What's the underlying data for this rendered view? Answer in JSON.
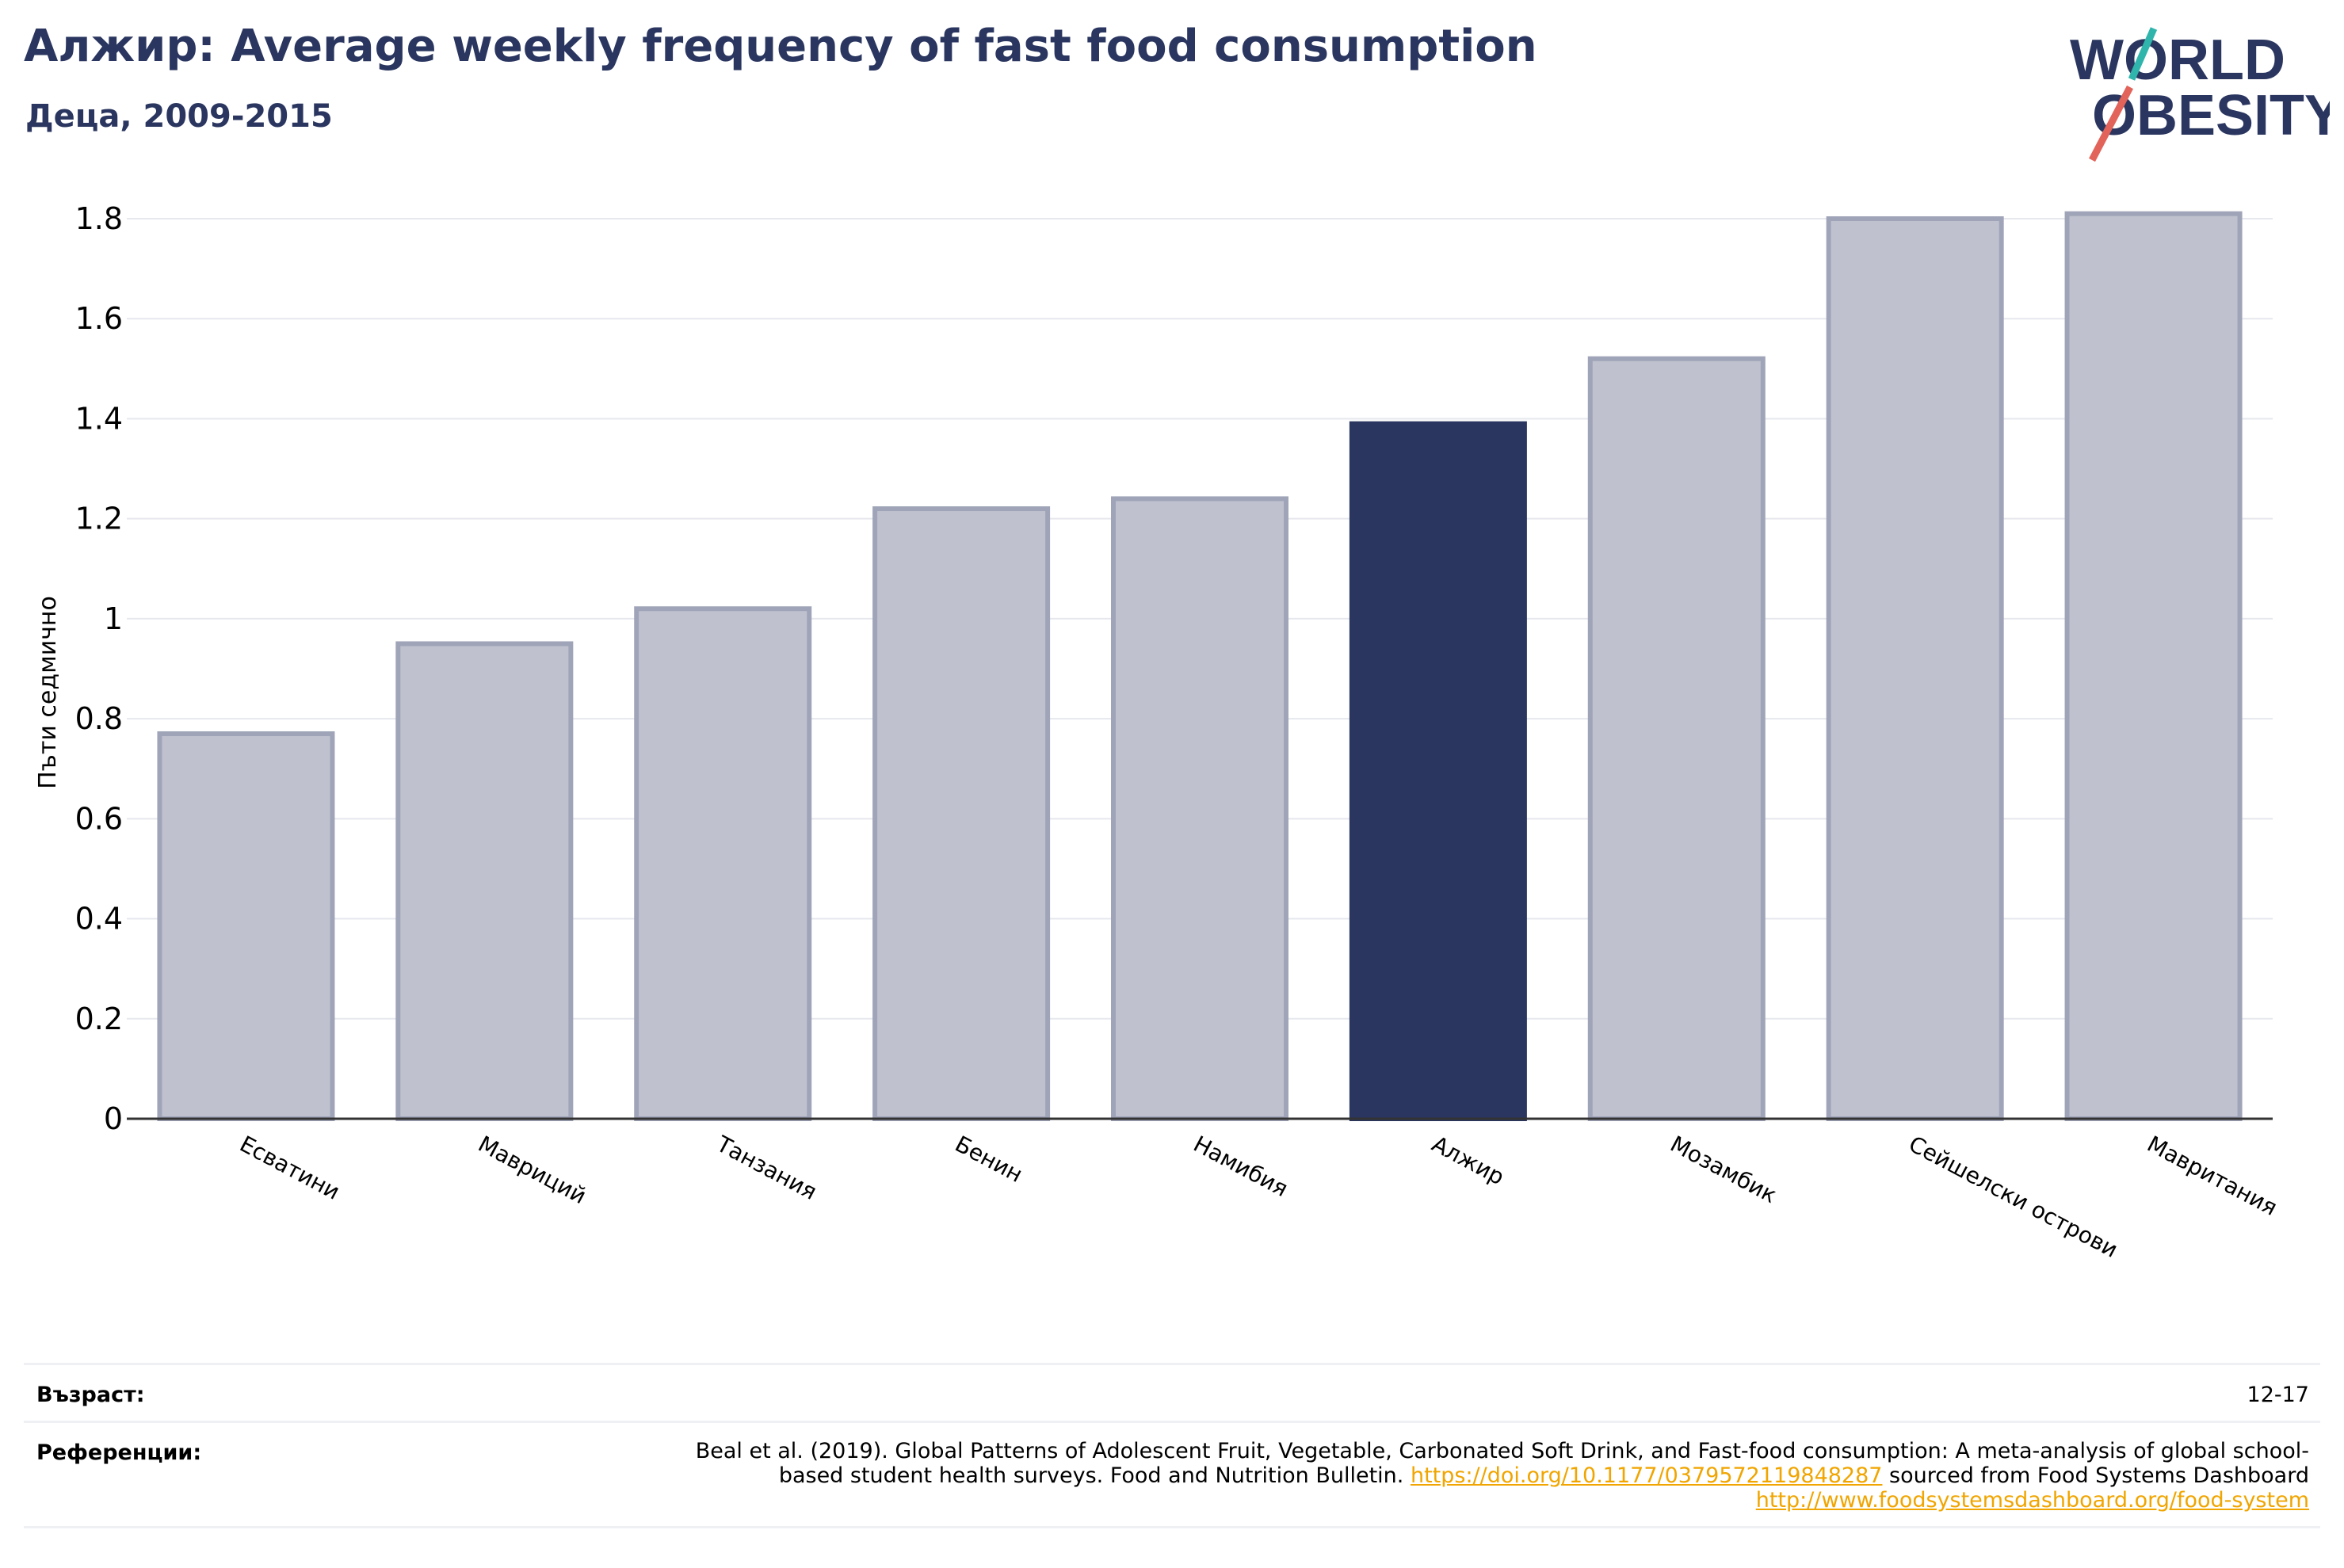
{
  "header": {
    "title": "Алжир: Average weekly frequency of fast food consumption",
    "subtitle": "Деца, 2009-2015"
  },
  "logo": {
    "line1": "WORLD",
    "line2": "OBESITY"
  },
  "chart_data": {
    "type": "bar",
    "title": "Алжир: Average weekly frequency of fast food consumption",
    "subtitle": "Деца, 2009-2015",
    "ylabel": "Пъти седмично",
    "xlabel": "",
    "ylim": [
      0,
      1.8
    ],
    "yticks": [
      0,
      0.2,
      0.4,
      0.6,
      0.8,
      1,
      1.2,
      1.4,
      1.6,
      1.8
    ],
    "ytick_labels": [
      "0",
      "0.2",
      "0.4",
      "0.6",
      "0.8",
      "1",
      "1.2",
      "1.4",
      "1.6",
      "1.8"
    ],
    "categories": [
      "Есватини",
      "Мавриций",
      "Танзания",
      "Бенин",
      "Намибия",
      "Алжир",
      "Мозамбик",
      "Сейшелски острови",
      "Мавритания"
    ],
    "values": [
      0.77,
      0.95,
      1.02,
      1.22,
      1.24,
      1.39,
      1.52,
      1.8,
      1.81
    ],
    "highlight": "Алжир",
    "highlight_color": "#2a365f",
    "bar_color": "#bfc2ce",
    "bar_edge_color": "#9fa4b8",
    "grid": true
  },
  "footer": {
    "age_label": "Възраст:",
    "age_value": "12-17",
    "refs_label": "Референции:",
    "refs_text_1": "Beal et al. (2019). Global Patterns of Adolescent Fruit, Vegetable, Carbonated Soft Drink, and Fast-food consumption: A meta-analysis of global school-based student health surveys. Food and Nutrition Bulletin. ",
    "refs_link_1": "https://doi.org/10.1177/0379572119848287",
    "refs_text_2": " sourced from Food Systems Dashboard ",
    "refs_link_2": "http://www.foodsystemsdashboard.org/food-system"
  }
}
